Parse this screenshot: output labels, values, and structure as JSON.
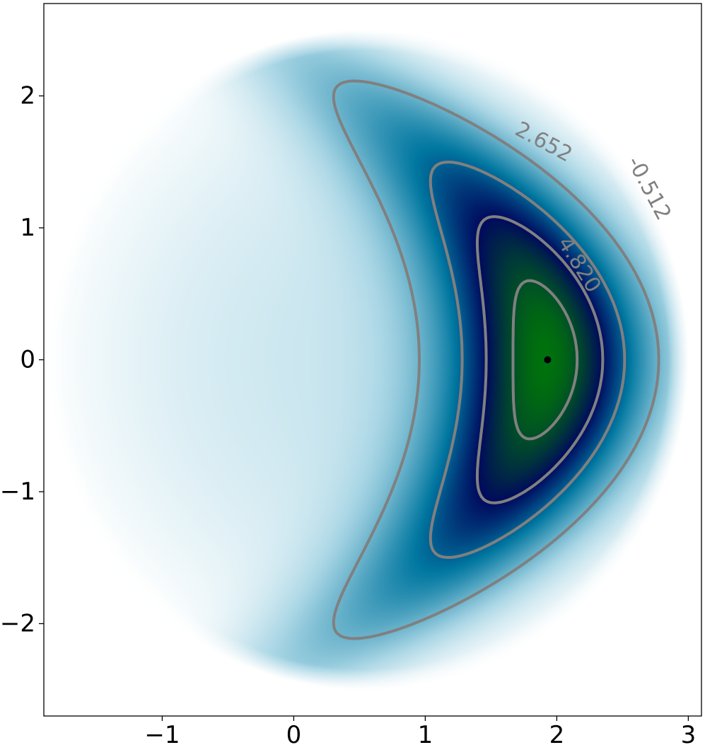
{
  "chart_data": {
    "type": "heatmap",
    "title": "",
    "xlabel": "",
    "ylabel": "",
    "xlim": [
      -1.9,
      3.1
    ],
    "ylim": [
      -2.7,
      2.7
    ],
    "grid": false,
    "colormap": [
      "#ffffff",
      "#a9d6e5",
      "#0077a0",
      "#000a5e",
      "#008000"
    ],
    "x_ticks": [
      {
        "value": -1,
        "label": "−1"
      },
      {
        "value": 0,
        "label": "0"
      },
      {
        "value": 1,
        "label": "1"
      },
      {
        "value": 2,
        "label": "2"
      },
      {
        "value": 3,
        "label": "3"
      }
    ],
    "y_ticks": [
      {
        "value": 2,
        "label": "2"
      },
      {
        "value": 1,
        "label": "1"
      },
      {
        "value": 0,
        "label": "0"
      },
      {
        "value": -1,
        "label": "−1"
      },
      {
        "value": -2,
        "label": "−2"
      }
    ],
    "field_support": {
      "center_x": 0.55,
      "center_y": 0.0,
      "radius_x": 2.45,
      "radius_y": 2.5
    },
    "contours": [
      {
        "level": -0.512,
        "label": "-0.512",
        "color": "#808080"
      },
      {
        "level": 2.652,
        "label": "2.652",
        "color": "#808080"
      },
      {
        "level": 4.82,
        "label": "4.820",
        "color": "#808080"
      },
      {
        "level": 6.9,
        "label": "",
        "color": "#808080"
      }
    ],
    "maximum_point": {
      "x": 1.93,
      "y": 0.0,
      "color": "#000000"
    }
  }
}
